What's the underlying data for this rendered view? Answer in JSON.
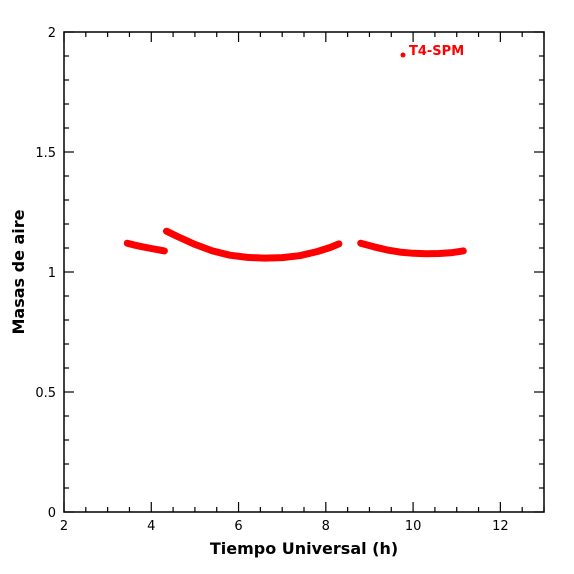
{
  "chart_data": {
    "type": "scatter",
    "xlabel": "Tiempo Universal (h)",
    "ylabel": "Masas de aire",
    "xlim": [
      2,
      13
    ],
    "ylim": [
      0,
      2
    ],
    "x_ticks": [
      "2",
      "4",
      "6",
      "8",
      "10",
      "12"
    ],
    "y_ticks": [
      "0",
      "0.5",
      "1",
      "1.5",
      "2"
    ],
    "legend": "top-right",
    "grid": false,
    "series": [
      {
        "name": "T4-SPM",
        "color": "#ff0000",
        "segments": [
          [
            [
              3.45,
              1.12
            ],
            [
              3.6,
              1.113
            ],
            [
              3.8,
              1.105
            ],
            [
              4.0,
              1.098
            ],
            [
              4.15,
              1.093
            ],
            [
              4.3,
              1.088
            ]
          ],
          [
            [
              4.35,
              1.17
            ],
            [
              4.6,
              1.148
            ],
            [
              5.0,
              1.115
            ],
            [
              5.4,
              1.088
            ],
            [
              5.8,
              1.07
            ],
            [
              6.2,
              1.061
            ],
            [
              6.6,
              1.058
            ],
            [
              7.0,
              1.06
            ],
            [
              7.4,
              1.068
            ],
            [
              7.8,
              1.085
            ],
            [
              8.1,
              1.102
            ],
            [
              8.3,
              1.117
            ]
          ],
          [
            [
              8.8,
              1.12
            ],
            [
              9.1,
              1.105
            ],
            [
              9.4,
              1.092
            ],
            [
              9.7,
              1.083
            ],
            [
              10.0,
              1.078
            ],
            [
              10.3,
              1.076
            ],
            [
              10.6,
              1.077
            ],
            [
              10.9,
              1.081
            ],
            [
              11.15,
              1.088
            ]
          ]
        ]
      }
    ]
  }
}
